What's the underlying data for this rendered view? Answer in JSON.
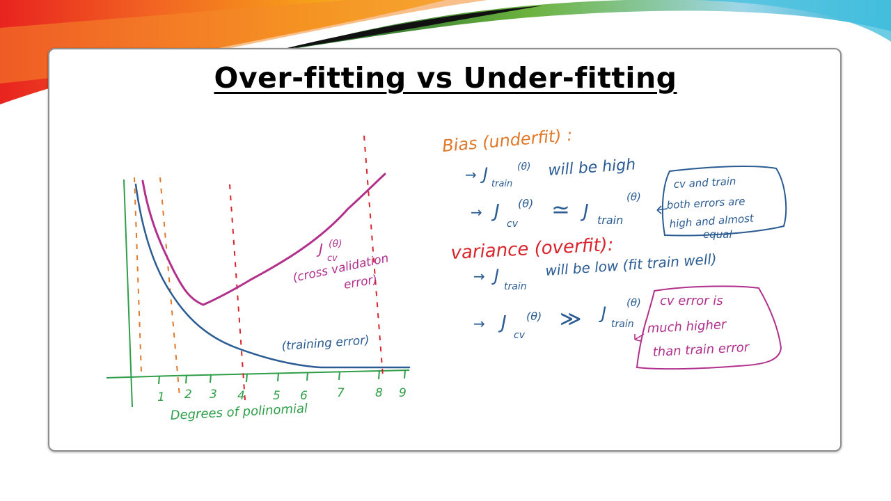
{
  "slide": {
    "title": "Over-fitting vs Under-fitting"
  },
  "colors": {
    "green": "#2e9e48",
    "orange": "#e0782a",
    "red": "#d8242c",
    "purple": "#b0308c",
    "blue": "#2a5b92"
  },
  "graph": {
    "x_ticks": [
      "1",
      "2",
      "3",
      "4",
      "5",
      "6",
      "7",
      "8",
      "9"
    ],
    "xlabel": "Degrees of polinomial",
    "cv_label": "J",
    "cv_label_theta": "(θ)",
    "cv_label_sub": "cv",
    "cv_desc_1": "(cross validation",
    "cv_desc_2": "error)",
    "train_label": "(training error)"
  },
  "notes": {
    "bias_heading": "Bias (underfit) :",
    "bias_line1_arrow": "→",
    "bias_line1_j": "J",
    "bias_line1_sub": "train",
    "bias_line1_theta": "(θ)",
    "bias_line1_text": "will be high",
    "bias_line2_arrow": "→",
    "bias_line2_j": "J",
    "bias_line2_sub": "cv",
    "bias_line2_theta": "(θ)",
    "bias_line2_approx": "≃",
    "bias_line2_j2": "J",
    "bias_line2_sub2": "train",
    "bias_line2_theta2": "(θ)",
    "bias_box_1": "cv and train",
    "bias_box_2": "both errors are",
    "bias_box_3": "high and almost",
    "bias_box_4": "equal",
    "variance_heading": "variance (overfit):",
    "var_line1_arrow": "→",
    "var_line1_j": "J",
    "var_line1_sub": "train",
    "var_line1_text": "will be low (fit train well)",
    "var_line2_arrow": "→",
    "var_line2_j": "J",
    "var_line2_sub": "cv",
    "var_line2_theta": "(θ)",
    "var_line2_gg": "≫",
    "var_line2_j2": "J",
    "var_line2_sub2": "train",
    "var_line2_theta2": "(θ)",
    "var_box_1": "cv error is",
    "var_box_2": "much higher",
    "var_box_3": "than train error"
  }
}
